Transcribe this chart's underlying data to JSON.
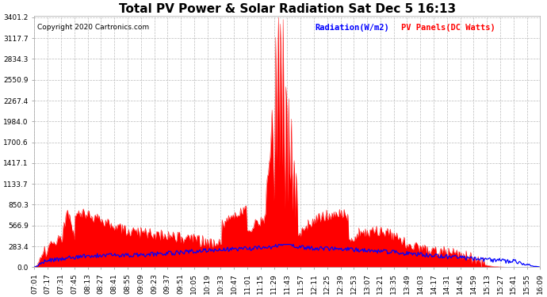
{
  "title": "Total PV Power & Solar Radiation Sat Dec 5 16:13",
  "copyright": "Copyright 2020 Cartronics.com",
  "legend_radiation": "Radiation(W/m2)",
  "legend_pv": "PV Panels(DC Watts)",
  "yticks": [
    0.0,
    283.4,
    566.9,
    850.3,
    1133.7,
    1417.1,
    1700.6,
    1984.0,
    2267.4,
    2550.9,
    2834.3,
    3117.7,
    3401.2
  ],
  "xtick_labels": [
    "07:01",
    "07:17",
    "07:31",
    "07:45",
    "08:13",
    "08:27",
    "08:41",
    "08:55",
    "09:09",
    "09:23",
    "09:37",
    "09:51",
    "10:05",
    "10:19",
    "10:33",
    "10:47",
    "11:01",
    "11:15",
    "11:29",
    "11:43",
    "11:57",
    "12:11",
    "12:25",
    "12:39",
    "12:53",
    "13:07",
    "13:21",
    "13:35",
    "13:49",
    "14:03",
    "14:17",
    "14:31",
    "14:45",
    "14:59",
    "15:13",
    "15:27",
    "15:41",
    "15:55",
    "16:09"
  ],
  "ymax": 3401.2,
  "ymin": 0,
  "bg_color": "#ffffff",
  "grid_color": "#bbbbbb",
  "fill_color": "#ff0000",
  "line_color_radiation": "#0000ff",
  "title_fontsize": 11,
  "label_fontsize": 6.5,
  "copyright_fontsize": 6.5,
  "legend_fontsize": 7.5
}
